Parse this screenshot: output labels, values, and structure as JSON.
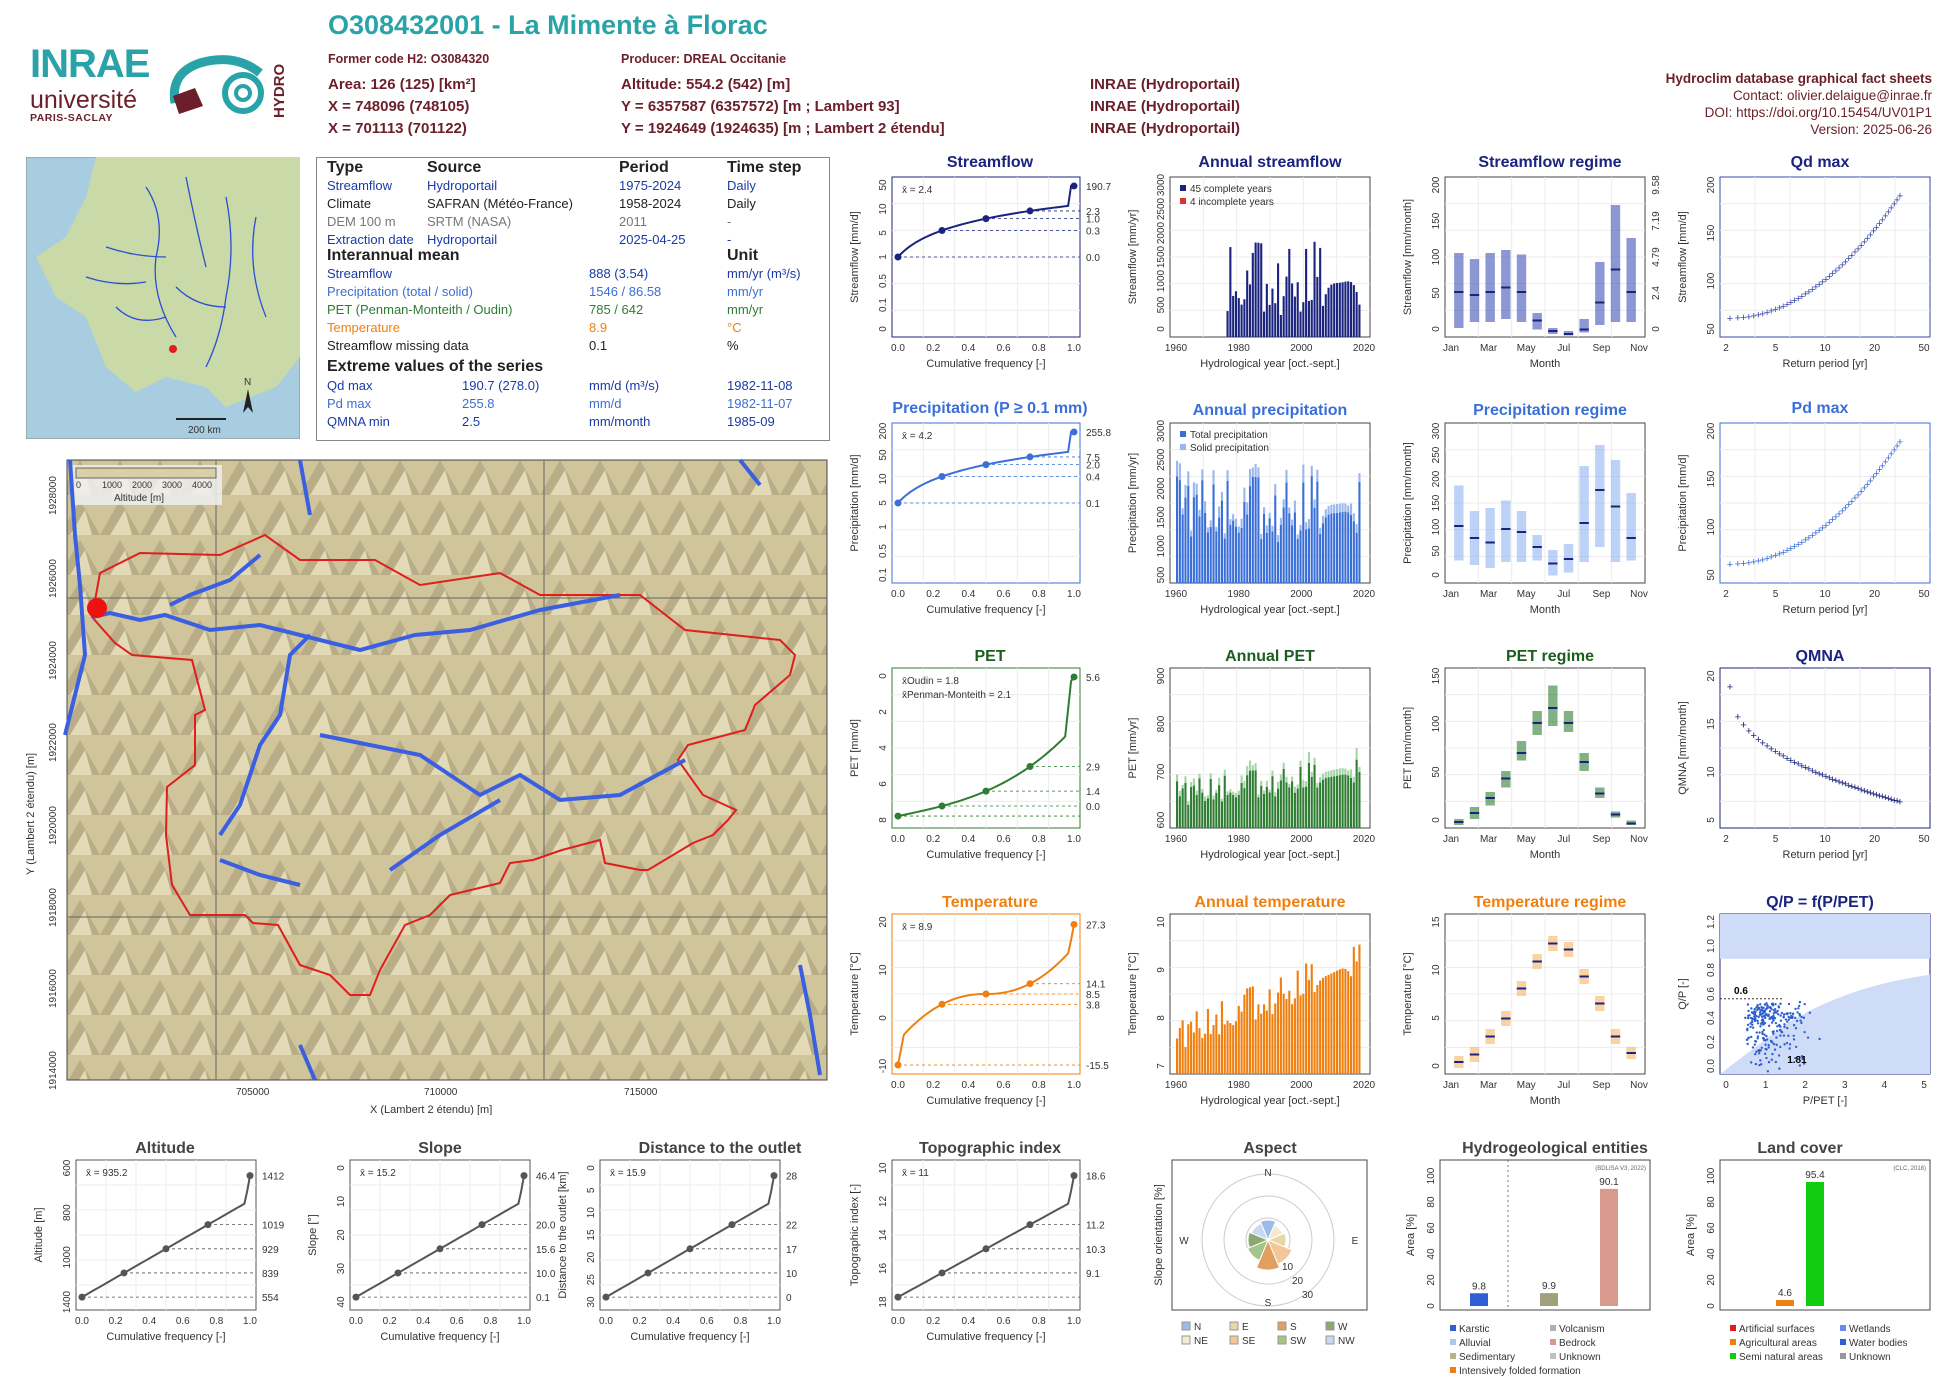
{
  "header": {
    "title": "O308432001 - La Mimente à Florac",
    "former_code": "Former code H2: O3084320",
    "producer": "Producer: DREAL Occitanie",
    "area": "Area: 126 (125) [km²]",
    "altitude": "Altitude: 554.2 (542) [m]",
    "x_l93": "X = 748096 (748105)",
    "y_l93": "Y = 6357587 (6357572) [m ; Lambert 93]",
    "x_l2": "X = 701113 (701122)",
    "y_l2": "Y = 1924649 (1924635) [m ; Lambert 2 étendu]",
    "src1": "INRAE (Hydroportail)",
    "src2": "INRAE (Hydroportail)",
    "src3": "INRAE (Hydroportail)"
  },
  "right_info": {
    "line1": "Hydroclim database graphical fact sheets",
    "line2": "Contact: olivier.delaigue@inrae.fr",
    "line3": "DOI: https://doi.org/10.15454/UV01P1",
    "line4": "Version: 2025-06-26"
  },
  "logos": {
    "inrae": "INRAE",
    "universite": "université",
    "paris_saclay": "PARIS-SACLAY",
    "hydro": "HYDRO"
  },
  "colors": {
    "brand": "#2aa3a8",
    "maroon": "#6b1f2a",
    "streamflow": "#1a237e",
    "precip": "#3b6fd8",
    "pet": "#2e7d32",
    "temp": "#ef7f0f"
  },
  "infobox": {
    "h_type": "Type",
    "h_source": "Source",
    "h_period": "Period",
    "h_step": "Time step",
    "rows": [
      {
        "type": "Streamflow",
        "source": "Hydroportail",
        "period": "1975-2024",
        "step": "Daily",
        "color": "#1a3aa8"
      },
      {
        "type": "Climate",
        "source": "SAFRAN (Météo-France)",
        "period": "1958-2024",
        "step": "Daily",
        "color": "#222222"
      },
      {
        "type": "DEM 100 m",
        "source": "SRTM (NASA)",
        "period": "2011",
        "step": "-",
        "color": "#777777"
      },
      {
        "type": "Extraction date",
        "source": "Hydroportail",
        "period": "2025-04-25",
        "step": "-",
        "color": "#1a3aa8"
      }
    ],
    "h_mean": "Interannual mean",
    "h_unit": "Unit",
    "means": [
      {
        "label": "Streamflow",
        "value": "888 (3.54)",
        "unit": "mm/yr (m³/s)",
        "color": "#1a3aa8"
      },
      {
        "label": "Precipitation (total / solid)",
        "value": "1546 / 86.58",
        "unit": "mm/yr",
        "color": "#3b6fd8"
      },
      {
        "label": "PET (Penman-Monteith / Oudin)",
        "value": "785 / 642",
        "unit": "mm/yr",
        "color": "#2e7d32"
      },
      {
        "label": "Temperature",
        "value": "8.9",
        "unit": "°C",
        "color": "#ef7f0f"
      },
      {
        "label": "Streamflow missing data",
        "value": "0.1",
        "unit": "%",
        "color": "#222222"
      }
    ],
    "h_extreme": "Extreme values of the series",
    "extremes": [
      {
        "label": "Qd max",
        "value": "190.7 (278.0)",
        "unit": "mm/d (m³/s)",
        "date": "1982-11-08",
        "color": "#1a3aa8"
      },
      {
        "label": "Pd max",
        "value": "255.8",
        "unit": "mm/d",
        "date": "1982-11-07",
        "color": "#3b6fd8"
      },
      {
        "label": "QMNA min",
        "value": "2.5",
        "unit": "mm/month",
        "date": "1985-09",
        "color": "#1a3aa8"
      }
    ]
  },
  "map": {
    "scale": "200 km",
    "north": "N",
    "legend_ticks": [
      "0",
      "1000",
      "2000",
      "3000",
      "4000"
    ],
    "legend_title": "Altitude [m]",
    "xlabel": "X (Lambert 2 étendu) [m]",
    "ylabel": "Y (Lambert 2 étendu) [m]",
    "xticks": [
      "705000",
      "710000",
      "715000"
    ],
    "yticks": [
      "1928000",
      "1926000",
      "1924000",
      "1922000",
      "1920000",
      "1918000",
      "1916000",
      "1914000"
    ]
  },
  "panel_titles": {
    "streamflow": "Streamflow",
    "annual_streamflow": "Annual streamflow",
    "streamflow_regime": "Streamflow regime",
    "qd_max": "Qd max",
    "precipitation": "Precipitation (P ≥ 0.1 mm)",
    "annual_precipitation": "Annual precipitation",
    "precipitation_regime": "Precipitation regime",
    "pd_max": "Pd max",
    "pet": "PET",
    "annual_pet": "Annual PET",
    "pet_regime": "PET regime",
    "qmna": "QMNA",
    "temperature": "Temperature",
    "annual_temperature": "Annual temperature",
    "temperature_regime": "Temperature regime",
    "qp": "Q/P = f(P/PET)",
    "altitude": "Altitude",
    "slope": "Slope",
    "distance": "Distance to the outlet",
    "topo": "Topographic index",
    "aspect": "Aspect",
    "hydrogeo": "Hydrogeological entities",
    "landcover": "Land cover"
  },
  "chart_data": [
    {
      "id": "streamflow_cdf",
      "type": "line",
      "xlabel": "Cumulative frequency [-]",
      "ylabel": "Streamflow [mm/d]",
      "mean_label": "x̄ = 2.4",
      "right_ticks": [
        "190.7",
        "2.3",
        "1.0",
        "0.3",
        "0.0"
      ],
      "left_ticks": [
        "50",
        "10",
        "5",
        "1",
        "0.5",
        "0.1",
        "0"
      ],
      "xticks": [
        "0.0",
        "0.2",
        "0.4",
        "0.6",
        "0.8",
        "1.0"
      ],
      "color": "#1a237e"
    },
    {
      "id": "annual_streamflow",
      "type": "bar",
      "xlabel": "Hydrological year [oct.-sept.]",
      "ylabel": "Streamflow [mm/yr]",
      "yticks": [
        "0",
        "500",
        "1000",
        "1500",
        "2000",
        "2500",
        "3000"
      ],
      "xticks": [
        "1960",
        "1980",
        "2000",
        "2020"
      ],
      "legend": [
        "45 complete years",
        "4 incomplete years"
      ],
      "color": "#1a237e"
    },
    {
      "id": "streamflow_regime",
      "type": "bar",
      "xlabel": "Month",
      "ylabel": "Streamflow [mm/month]",
      "yticks": [
        "0",
        "50",
        "100",
        "150",
        "200"
      ],
      "right_ticks": [
        "0",
        "2.4",
        "4.79",
        "7.19",
        "9.58"
      ],
      "xticks": [
        "Jan",
        "Mar",
        "May",
        "Jul",
        "Sep",
        "Nov"
      ],
      "color": "#3949ab"
    },
    {
      "id": "qd_max",
      "type": "scatter",
      "xlabel": "Return period [yr]",
      "ylabel": "Streamflow [mm/d]",
      "yticks": [
        "50",
        "100",
        "150",
        "200"
      ],
      "xticks": [
        "2",
        "5",
        "10",
        "20",
        "50"
      ],
      "color": "#3949ab"
    },
    {
      "id": "precip_cdf",
      "type": "line",
      "xlabel": "Cumulative frequency [-]",
      "ylabel": "Precipitation [mm/d]",
      "mean_label": "x̄ = 4.2",
      "right_ticks": [
        "255.8",
        "7.5",
        "2.0",
        "0.4",
        "0.1"
      ],
      "left_ticks": [
        "200",
        "50",
        "10",
        "5",
        "1",
        "0.5",
        "0.1"
      ],
      "xticks": [
        "0.0",
        "0.2",
        "0.4",
        "0.6",
        "0.8",
        "1.0"
      ],
      "color": "#3b6fd8"
    },
    {
      "id": "annual_precip",
      "type": "bar",
      "xlabel": "Hydrological year [oct.-sept.]",
      "ylabel": "Precipitation [mm/yr]",
      "yticks": [
        "500",
        "1000",
        "1500",
        "2000",
        "2500",
        "3000"
      ],
      "xticks": [
        "1960",
        "1980",
        "2000",
        "2020"
      ],
      "legend": [
        "Total precipitation",
        "Solid precipitation"
      ],
      "color": "#3b6fd8"
    },
    {
      "id": "precip_regime",
      "type": "bar",
      "xlabel": "Month",
      "ylabel": "Precipitation [mm/month]",
      "yticks": [
        "0",
        "50",
        "100",
        "150",
        "200",
        "250",
        "300"
      ],
      "xticks": [
        "Jan",
        "Mar",
        "May",
        "Jul",
        "Sep",
        "Nov"
      ],
      "color": "#90b4f0"
    },
    {
      "id": "pd_max",
      "type": "scatter",
      "xlabel": "Return period [yr]",
      "ylabel": "Precipitation [mm/d]",
      "yticks": [
        "50",
        "100",
        "150",
        "200"
      ],
      "xticks": [
        "2",
        "5",
        "10",
        "20",
        "50"
      ],
      "color": "#3b6fd8"
    },
    {
      "id": "pet_cdf",
      "type": "line",
      "xlabel": "Cumulative frequency [-]",
      "ylabel": "PET [mm/d]",
      "mean_label_1": "x̄Oudin = 1.8",
      "mean_label_2": "x̄Penman-Monteith = 2.1",
      "right_ticks": [
        "5.6",
        "2.9",
        "1.4",
        "0.0"
      ],
      "left_ticks": [
        "0",
        "2",
        "4",
        "6",
        "8"
      ],
      "xticks": [
        "0.0",
        "0.2",
        "0.4",
        "0.6",
        "0.8",
        "1.0"
      ],
      "color": "#2e7d32"
    },
    {
      "id": "annual_pet",
      "type": "bar",
      "xlabel": "Hydrological year [oct.-sept.]",
      "ylabel": "PET [mm/yr]",
      "yticks": [
        "600",
        "700",
        "800",
        "900"
      ],
      "xticks": [
        "1960",
        "1980",
        "2000",
        "2020"
      ],
      "color": "#2e7d32"
    },
    {
      "id": "pet_regime",
      "type": "bar",
      "xlabel": "Month",
      "ylabel": "PET [mm/month]",
      "yticks": [
        "0",
        "50",
        "100",
        "150"
      ],
      "xticks": [
        "Jan",
        "Mar",
        "May",
        "Jul",
        "Sep",
        "Nov"
      ],
      "color": "#2e7d32"
    },
    {
      "id": "qmna",
      "type": "scatter",
      "xlabel": "Return period [yr]",
      "ylabel": "QMNA [mm/month]",
      "yticks": [
        "5",
        "10",
        "15",
        "20"
      ],
      "xticks": [
        "2",
        "5",
        "10",
        "20",
        "50"
      ],
      "color": "#1a237e"
    },
    {
      "id": "temp_cdf",
      "type": "line",
      "xlabel": "Cumulative frequency [-]",
      "ylabel": "Temperature [°C]",
      "mean_label": "x̄ = 8.9",
      "right_ticks": [
        "27.3",
        "14.1",
        "8.5",
        "3.8",
        "-15.5"
      ],
      "left_ticks": [
        "20",
        "10",
        "0",
        "-10"
      ],
      "xticks": [
        "0.0",
        "0.2",
        "0.4",
        "0.6",
        "0.8",
        "1.0"
      ],
      "color": "#ef7f0f"
    },
    {
      "id": "annual_temp",
      "type": "bar",
      "xlabel": "Hydrological year [oct.-sept.]",
      "ylabel": "Temperature [°C]",
      "yticks": [
        "7",
        "8",
        "9",
        "10"
      ],
      "xticks": [
        "1960",
        "1980",
        "2000",
        "2020"
      ],
      "color": "#ef7f0f"
    },
    {
      "id": "temp_regime",
      "type": "bar",
      "xlabel": "Month",
      "ylabel": "Temperature [°C]",
      "yticks": [
        "0",
        "5",
        "10",
        "15"
      ],
      "xticks": [
        "Jan",
        "Mar",
        "May",
        "Jul",
        "Sep",
        "Nov"
      ],
      "color": "#f5b567"
    },
    {
      "id": "qp",
      "type": "scatter",
      "xlabel": "P/PET [-]",
      "ylabel": "Q/P [-]",
      "yticks": [
        "0.0",
        "0.2",
        "0.4",
        "0.6",
        "0.8",
        "1.0",
        "1.2"
      ],
      "xticks": [
        "0",
        "1",
        "2",
        "3",
        "4",
        "5"
      ],
      "label_y": "0.6",
      "label_x": "1.81",
      "color": "#3b6fd8"
    },
    {
      "id": "altitude",
      "type": "line",
      "xlabel": "Cumulative frequency [-]",
      "ylabel": "Altitude [m]",
      "mean_label": "x̄ = 935.2",
      "right_ticks": [
        "1412",
        "1019",
        "929",
        "839",
        "554"
      ],
      "left_ticks": [
        "600",
        "800",
        "1000",
        "1400"
      ],
      "xticks": [
        "0.0",
        "0.2",
        "0.4",
        "0.6",
        "0.8",
        "1.0"
      ],
      "color": "#555555"
    },
    {
      "id": "slope",
      "type": "line",
      "xlabel": "Cumulative frequency [-]",
      "ylabel": "Slope [°]",
      "mean_label": "x̄ = 15.2",
      "right_ticks": [
        "46.4",
        "20.0",
        "15.6",
        "10.0",
        "0.1"
      ],
      "left_ticks": [
        "0",
        "10",
        "20",
        "30",
        "40"
      ],
      "xticks": [
        "0.0",
        "0.2",
        "0.4",
        "0.6",
        "0.8",
        "1.0"
      ],
      "color": "#555555"
    },
    {
      "id": "distance",
      "type": "line",
      "xlabel": "Cumulative frequency [-]",
      "ylabel": "Distance to the outlet [km]",
      "mean_label": "x̄ = 15.9",
      "right_ticks": [
        "28",
        "22",
        "17",
        "10",
        "0"
      ],
      "left_ticks": [
        "0",
        "5",
        "10",
        "15",
        "20",
        "25",
        "30"
      ],
      "xticks": [
        "0.0",
        "0.2",
        "0.4",
        "0.6",
        "0.8",
        "1.0"
      ],
      "color": "#555555"
    },
    {
      "id": "topo",
      "type": "line",
      "xlabel": "Cumulative frequency [-]",
      "ylabel": "Topographic index [-]",
      "mean_label": "x̄ = 11",
      "right_ticks": [
        "18.6",
        "11.2",
        "10.3",
        "9.1"
      ],
      "left_ticks": [
        "10",
        "12",
        "14",
        "16",
        "18"
      ],
      "xticks": [
        "0.0",
        "0.2",
        "0.4",
        "0.6",
        "0.8",
        "1.0"
      ],
      "color": "#555555"
    },
    {
      "id": "aspect",
      "type": "pie",
      "ylabel": "Slope orientation [%]",
      "dirs": [
        "N",
        "E",
        "S",
        "W"
      ],
      "rings": [
        "10",
        "20",
        "30"
      ],
      "legend": [
        "N",
        "E",
        "S",
        "W",
        "NE",
        "SE",
        "SW",
        "NW"
      ]
    },
    {
      "id": "hydrogeo",
      "type": "bar",
      "ylabel": "Area [%]",
      "note": "(BDLISA V3, 2022)",
      "yticks": [
        "0",
        "20",
        "40",
        "60",
        "80",
        "100"
      ],
      "values": [
        9.8,
        9.9,
        90.1
      ],
      "labels": [
        "9.8",
        "9.9",
        "90.1"
      ],
      "legend": [
        "Karstic",
        "Alluvial",
        "Sedimentary",
        "Intensively folded formation",
        "Volcanism",
        "Bedrock",
        "Unknown"
      ]
    },
    {
      "id": "landcover",
      "type": "bar",
      "ylabel": "Area [%]",
      "note": "(CLC, 2018)",
      "yticks": [
        "0",
        "20",
        "40",
        "60",
        "80",
        "100"
      ],
      "values": [
        4.6,
        95.4
      ],
      "labels": [
        "4.6",
        "95.4"
      ],
      "legend": [
        "Artificial surfaces",
        "Agricultural areas",
        "Semi natural areas",
        "Wetlands",
        "Water bodies",
        "Unknown"
      ]
    }
  ]
}
